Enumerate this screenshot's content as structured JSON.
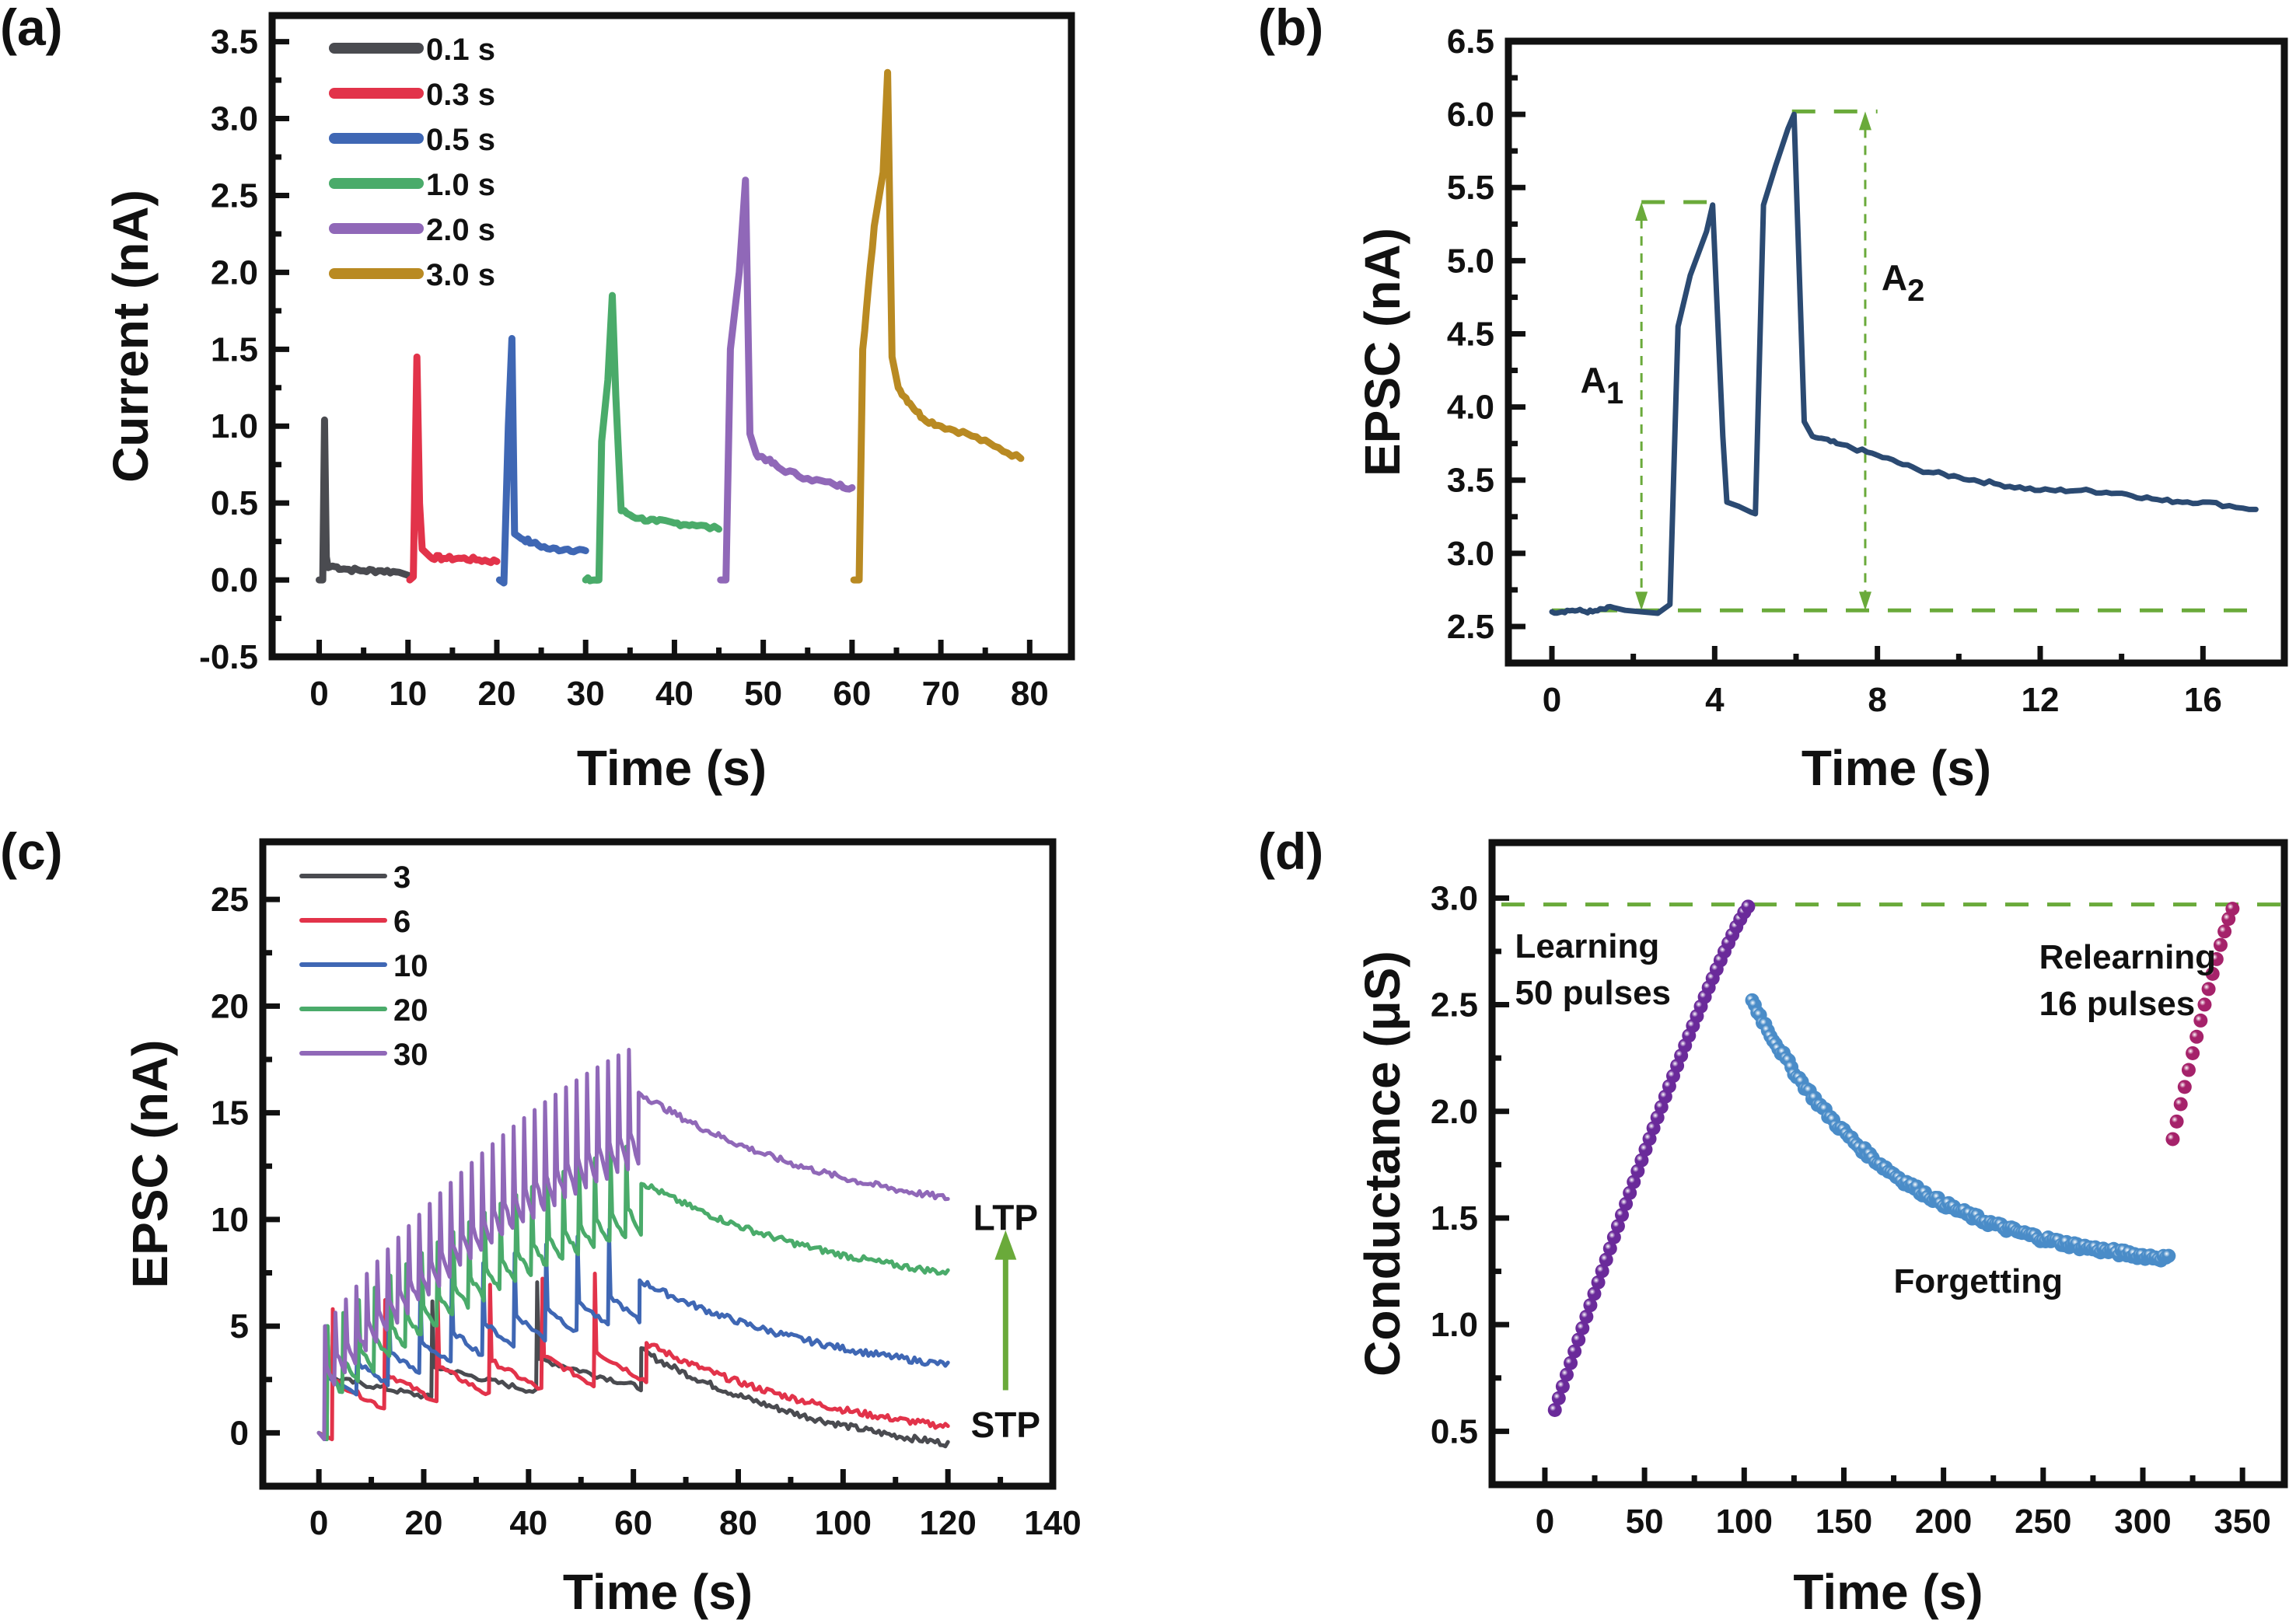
{
  "figure": {
    "panels": [
      "(a)",
      "(b)",
      "(c)",
      "(d)"
    ]
  },
  "chart_data": [
    {
      "id": "a",
      "panel_label": "(a)",
      "type": "line",
      "title": "",
      "xlabel": "Time (s)",
      "ylabel": "Current (nA)",
      "xlim": [
        -5.3,
        84.7
      ],
      "ylim": [
        -0.5,
        3.67
      ],
      "xticks": [
        0,
        10,
        20,
        30,
        40,
        50,
        60,
        70,
        80
      ],
      "yticks": [
        -0.5,
        0.0,
        0.5,
        1.0,
        1.5,
        2.0,
        2.5,
        3.0,
        3.5
      ],
      "ytick_labels": [
        "-0.5",
        "0.0",
        "0.5",
        "1.0",
        "1.5",
        "2.0",
        "2.5",
        "3.0",
        "3.5"
      ],
      "grid": false,
      "legend_position": "top-left",
      "series": [
        {
          "name": "0.1 s",
          "color": "#4a4b50",
          "x": [
            0.0,
            0.4,
            0.6,
            0.8,
            1.0,
            1.5,
            3,
            5,
            7,
            9,
            10
          ],
          "y": [
            0.0,
            0.0,
            1.04,
            0.15,
            0.08,
            0.09,
            0.07,
            0.06,
            0.06,
            0.05,
            0.03
          ]
        },
        {
          "name": "0.3 s",
          "color": "#e2334a",
          "x": [
            10.2,
            10.6,
            11.0,
            11.3,
            11.6,
            12.5,
            14,
            16,
            18,
            20
          ],
          "y": [
            0.0,
            0.02,
            1.45,
            0.5,
            0.2,
            0.15,
            0.14,
            0.14,
            0.13,
            0.12
          ]
        },
        {
          "name": "0.5 s",
          "color": "#3f67b4",
          "x": [
            20.3,
            20.8,
            21.3,
            21.7,
            22.0,
            22.5,
            24,
            26,
            28,
            30
          ],
          "y": [
            0.0,
            -0.02,
            1.0,
            1.57,
            0.3,
            0.28,
            0.24,
            0.2,
            0.2,
            0.19
          ]
        },
        {
          "name": "1.0 s",
          "color": "#4aab6a",
          "x": [
            30.0,
            31.5,
            31.8,
            32.5,
            33.0,
            33.4,
            34.0,
            36,
            38,
            40,
            42,
            45
          ],
          "y": [
            0.0,
            0.0,
            0.9,
            1.3,
            1.85,
            1.2,
            0.45,
            0.4,
            0.38,
            0.37,
            0.36,
            0.33
          ]
        },
        {
          "name": "2.0 s",
          "color": "#9068b8",
          "x": [
            45.2,
            45.8,
            46.3,
            47.3,
            48.0,
            48.5,
            49.2,
            50.5,
            52,
            55,
            58,
            60
          ],
          "y": [
            0.0,
            0.0,
            1.5,
            2.0,
            2.6,
            0.95,
            0.82,
            0.78,
            0.72,
            0.66,
            0.62,
            0.6
          ]
        },
        {
          "name": "3.0 s",
          "color": "#b98a22",
          "x": [
            60.2,
            60.8,
            61.2,
            62.5,
            63.5,
            64.0,
            64.5,
            65.2,
            66.5,
            68,
            70,
            73,
            76,
            79
          ],
          "y": [
            0.0,
            0.0,
            1.5,
            2.3,
            2.65,
            3.3,
            1.45,
            1.25,
            1.15,
            1.05,
            1.0,
            0.95,
            0.87,
            0.79
          ]
        }
      ]
    },
    {
      "id": "b",
      "panel_label": "(b)",
      "type": "line",
      "title": "",
      "xlabel": "Time (s)",
      "ylabel": "EPSC (nA)",
      "xlim": [
        -1.07,
        18.0
      ],
      "ylim": [
        2.25,
        6.5
      ],
      "xticks": [
        0,
        4,
        8,
        12,
        16
      ],
      "yticks": [
        2.5,
        3.0,
        3.5,
        4.0,
        4.5,
        5.0,
        5.5,
        6.0,
        6.5
      ],
      "ytick_labels": [
        "2.5",
        "3.0",
        "3.5",
        "4.0",
        "4.5",
        "5.0",
        "5.5",
        "6.0",
        "6.5"
      ],
      "grid": false,
      "series": [
        {
          "name": "EPSC",
          "color": "#2b4a72",
          "x": [
            0.0,
            0.5,
            1.0,
            1.5,
            1.8,
            2.2,
            2.6,
            2.9,
            3.0,
            3.1,
            3.4,
            3.8,
            3.95,
            4.2,
            4.3,
            4.6,
            4.9,
            5.0,
            5.2,
            5.5,
            5.8,
            5.95,
            6.2,
            6.4,
            7,
            8,
            9,
            10,
            11,
            12,
            13,
            14,
            15,
            16,
            17.3
          ],
          "y": [
            2.6,
            2.61,
            2.6,
            2.63,
            2.61,
            2.6,
            2.59,
            2.65,
            3.6,
            4.55,
            4.9,
            5.2,
            5.38,
            3.8,
            3.35,
            3.32,
            3.28,
            3.27,
            5.38,
            5.65,
            5.9,
            6.0,
            3.9,
            3.8,
            3.75,
            3.67,
            3.57,
            3.52,
            3.47,
            3.43,
            3.43,
            3.41,
            3.36,
            3.35,
            3.3
          ]
        }
      ],
      "annotations": [
        {
          "text": "A",
          "subscript": "1",
          "x": 0.7,
          "y": 4.1
        },
        {
          "text": "A",
          "subscript": "2",
          "x": 8.1,
          "y": 4.8
        }
      ],
      "reference_lines": {
        "baseline": 2.61,
        "A1_peak": 5.4,
        "A2_peak": 6.02,
        "A1_arrow_x": 2.2,
        "A2_arrow_x": 7.7,
        "A1_cap": [
          2.2,
          4.0
        ],
        "A2_cap": [
          5.9,
          8.0
        ],
        "color": "#6aaa3a"
      }
    },
    {
      "id": "c",
      "panel_label": "(c)",
      "type": "line",
      "title": "",
      "xlabel": "Time (s)",
      "ylabel": "EPSC (nA)",
      "xlim": [
        -10.7,
        140
      ],
      "ylim": [
        -2.5,
        27.7
      ],
      "xticks": [
        0,
        20,
        40,
        60,
        80,
        100,
        120,
        140
      ],
      "yticks": [
        0,
        5,
        10,
        15,
        20,
        25
      ],
      "ytick_labels": [
        "0",
        "5",
        "10",
        "15",
        "20",
        "25"
      ],
      "grid": false,
      "legend_position": "top-left",
      "series": [
        {
          "name": "3",
          "color": "#4a4b50",
          "pulses": 3,
          "period": 20,
          "start": 1.5,
          "peak0": 5.0,
          "peak_gain": 1.3,
          "base0": 1.8,
          "base_gain": 0.3,
          "end_value": -0.5
        },
        {
          "name": "6",
          "color": "#e2334a",
          "pulses": 6,
          "period": 10,
          "start": 2.5,
          "peak0": 5.8,
          "peak_gain": 0.45,
          "base0": 1.3,
          "base_gain": 0.35,
          "end_value": 0.3
        },
        {
          "name": "10",
          "color": "#3f67b4",
          "pulses": 10,
          "period": 6,
          "start": 1.2,
          "peak0": 5.0,
          "peak_gain": 0.7,
          "base0": 1.9,
          "base_gain": 0.55,
          "end_value": 3.2
        },
        {
          "name": "20",
          "color": "#4aab6a",
          "pulses": 20,
          "period": 3,
          "start": 1.5,
          "peak0": 5.0,
          "peak_gain": 0.63,
          "base0": 2.0,
          "base_gain": 0.58,
          "end_value": 7.5
        },
        {
          "name": "30",
          "color": "#9068b8",
          "pulses": 30,
          "period": 2,
          "start": 1.0,
          "peak0": 5.0,
          "peak_gain": 0.64,
          "base0": 2.5,
          "base_gain": 0.52,
          "end_value": 11.0
        }
      ],
      "annotations": [
        {
          "text": "LTP",
          "x": 131,
          "y": 9.5
        },
        {
          "text": "STP",
          "x": 131,
          "y": -0.2
        }
      ],
      "arrow": {
        "x": 131,
        "y_from": 2.0,
        "y_to": 9.5,
        "color": "#6aaa3a"
      }
    },
    {
      "id": "d",
      "panel_label": "(d)",
      "type": "scatter",
      "title": "",
      "xlabel": "Time (s)",
      "ylabel": "Conductance (μS)",
      "xlim": [
        -26.5,
        371
      ],
      "ylim": [
        0.25,
        3.26
      ],
      "xticks": [
        0,
        50,
        100,
        150,
        200,
        250,
        300,
        350
      ],
      "yticks": [
        0.5,
        1.0,
        1.5,
        2.0,
        2.5,
        3.0
      ],
      "ytick_labels": [
        "0.5",
        "1.0",
        "1.5",
        "2.0",
        "2.5",
        "3.0"
      ],
      "grid": false,
      "threshold_line": {
        "y": 2.97,
        "color": "#6aaa3a"
      },
      "series": [
        {
          "name": "Learning",
          "color": "#6a2a9a",
          "n": 50,
          "x_start": 5,
          "x_end": 102,
          "y_start": 0.6,
          "y_end": 2.96,
          "shape": "concave"
        },
        {
          "name": "Forgetting",
          "color": "#4a8cc8",
          "n": 160,
          "x_start": 104,
          "x_end": 313,
          "y_start": 2.52,
          "y_end": 1.31,
          "shape": "decay"
        },
        {
          "name": "Relearning",
          "color": "#a5226a",
          "n": 16,
          "x_start": 315,
          "x_end": 345,
          "y_start": 1.87,
          "y_end": 2.95,
          "shape": "concave"
        }
      ],
      "annotations": [
        {
          "lines": [
            "Learning",
            "50 pulses"
          ],
          "x": -15,
          "y": 2.72
        },
        {
          "lines": [
            "Relearning",
            "16 pulses"
          ],
          "x": 248,
          "y": 2.67
        },
        {
          "lines": [
            "Forgetting"
          ],
          "x": 175,
          "y": 1.15
        }
      ]
    }
  ]
}
